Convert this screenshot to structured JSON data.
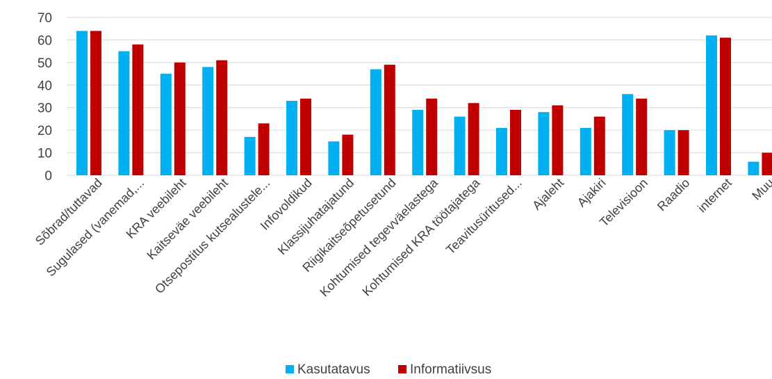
{
  "chart_data": {
    "type": "bar",
    "title": "",
    "xlabel": "",
    "ylabel": "",
    "ylim": [
      0,
      70
    ],
    "yticks": [
      0,
      10,
      20,
      30,
      40,
      50,
      60,
      70
    ],
    "grid": true,
    "legend_position": "bottom",
    "categories": [
      "Sõbrad/tuttavad",
      "Sugulased (vanemad,...",
      "KRA veebileht",
      "Kaitseväe veebileht",
      "Otsepostitus kutsealustele...",
      "Infovoldikud",
      "Klassijuhatajatund",
      "Riigikaitseõpetusetund",
      "Kohtumised tegevväelastega",
      "Kohtumised KRA töötajatega",
      "Teavitusüritused...",
      "Ajaleht",
      "Ajakiri",
      "Televisioon",
      "Raadio",
      "internet",
      "Muu"
    ],
    "series": [
      {
        "name": "Kasutatavus",
        "color": "#00b0f0",
        "values": [
          64,
          55,
          45,
          48,
          17,
          33,
          15,
          47,
          29,
          26,
          21,
          28,
          21,
          36,
          20,
          62,
          6
        ]
      },
      {
        "name": "Informatiivsus",
        "color": "#c00000",
        "values": [
          64,
          58,
          50,
          51,
          23,
          34,
          18,
          49,
          34,
          32,
          29,
          31,
          26,
          34,
          20,
          61,
          10
        ]
      }
    ]
  }
}
